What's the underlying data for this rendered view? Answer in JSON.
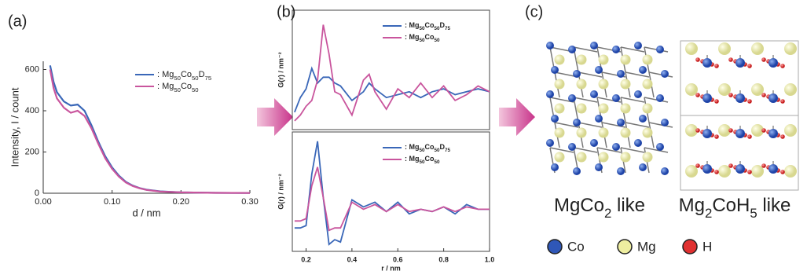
{
  "chart_data": [
    {
      "type": "line",
      "panel": "(a)",
      "ylabel": "Intensity, I / count",
      "xlabel": "d / nm",
      "x": [
        0.01,
        0.015,
        0.02,
        0.03,
        0.04,
        0.05,
        0.06,
        0.07,
        0.08,
        0.09,
        0.1,
        0.11,
        0.12,
        0.13,
        0.14,
        0.15,
        0.17,
        0.2,
        0.25,
        0.3
      ],
      "series": [
        {
          "name": ": Mg50Co50D75",
          "color": "#3a67b8",
          "values": [
            620,
            540,
            490,
            445,
            425,
            430,
            400,
            330,
            250,
            180,
            125,
            85,
            55,
            37,
            25,
            17,
            9,
            4,
            2,
            1
          ]
        },
        {
          "name": ": Mg50Co50",
          "color": "#c9559d",
          "values": [
            600,
            510,
            460,
            415,
            390,
            400,
            375,
            315,
            240,
            170,
            118,
            80,
            52,
            35,
            24,
            16,
            8,
            4,
            2,
            1
          ]
        }
      ],
      "xlim": [
        0,
        0.3
      ],
      "ylim": [
        0,
        640
      ],
      "xticks": [
        {
          "value": 0,
          "label": "0.00"
        },
        {
          "value": 0.1,
          "label": "0.10"
        },
        {
          "value": 0.2,
          "label": "0.20"
        },
        {
          "value": 0.3,
          "label": "0.30"
        }
      ],
      "yticks": [
        0,
        200,
        400,
        600
      ]
    },
    {
      "type": "line",
      "panel": "(b)",
      "ylabel": "G(r) / nm⁻²",
      "x": [
        0.15,
        0.175,
        0.2,
        0.225,
        0.25,
        0.275,
        0.3,
        0.325,
        0.35,
        0.4,
        0.45,
        0.475,
        0.5,
        0.55,
        0.6,
        0.65,
        0.7,
        0.75,
        0.8,
        0.85,
        0.9,
        0.95,
        1.0
      ],
      "series": [
        {
          "name": ": Mg50Co50D75",
          "color": "#3a67b8",
          "values": [
            -0.2,
            0.3,
            0.6,
            1.3,
            0.8,
            1.0,
            1.0,
            0.8,
            0.7,
            0.2,
            0.5,
            0.8,
            0.6,
            0.3,
            0.4,
            0.5,
            0.3,
            0.5,
            0.6,
            0.4,
            0.5,
            0.6,
            0.5
          ]
        },
        {
          "name": ": Mg50Co50",
          "color": "#c9559d",
          "values": [
            -0.5,
            -0.3,
            0.0,
            0.2,
            0.9,
            2.8,
            1.8,
            0.5,
            0.4,
            -0.3,
            0.9,
            1.1,
            0.5,
            -0.1,
            0.6,
            0.3,
            0.8,
            0.3,
            0.7,
            0.2,
            0.4,
            0.7,
            0.5
          ]
        }
      ],
      "xlim": [
        0.14,
        1.0
      ],
      "ylim": [
        -0.8,
        3.3
      ]
    },
    {
      "type": "line",
      "ylabel": "G(r) / nm⁻²",
      "xlabel": "r / nm",
      "x": [
        0.15,
        0.175,
        0.2,
        0.225,
        0.25,
        0.275,
        0.3,
        0.325,
        0.35,
        0.4,
        0.45,
        0.475,
        0.5,
        0.55,
        0.6,
        0.65,
        0.7,
        0.75,
        0.8,
        0.85,
        0.9,
        0.95,
        1.0
      ],
      "series": [
        {
          "name": ": Mg50Co50D75",
          "color": "#3a67b8",
          "values": [
            -0.3,
            -0.3,
            -0.2,
            2.0,
            3.4,
            1.0,
            -1.0,
            -0.8,
            -0.9,
            0.9,
            0.6,
            0.7,
            0.8,
            0.4,
            0.8,
            0.3,
            0.5,
            0.4,
            0.6,
            0.3,
            0.7,
            0.5,
            0.5
          ]
        },
        {
          "name": ": Mg50Co50",
          "color": "#c9559d",
          "values": [
            0.0,
            0.0,
            0.1,
            1.5,
            2.3,
            1.0,
            -0.4,
            -0.3,
            -0.3,
            0.8,
            0.5,
            0.6,
            0.7,
            0.4,
            0.7,
            0.4,
            0.5,
            0.4,
            0.6,
            0.4,
            0.6,
            0.5,
            0.5
          ]
        }
      ],
      "xlim": [
        0.14,
        1.0
      ],
      "ylim": [
        -1.3,
        3.8
      ],
      "xticks": [
        0.2,
        0.4,
        0.6,
        0.8,
        {
          "value": 1.0,
          "label": "1.0"
        }
      ]
    }
  ],
  "structures": {
    "panel": "(c)",
    "names": [
      "MgCo2 like",
      "Mg2CoH5 like"
    ],
    "legend": [
      {
        "label": "Co",
        "color": "#2f57b8"
      },
      {
        "label": "Mg",
        "color": "#eeeeA0"
      },
      {
        "label": "H",
        "color": "#e03030"
      }
    ]
  }
}
